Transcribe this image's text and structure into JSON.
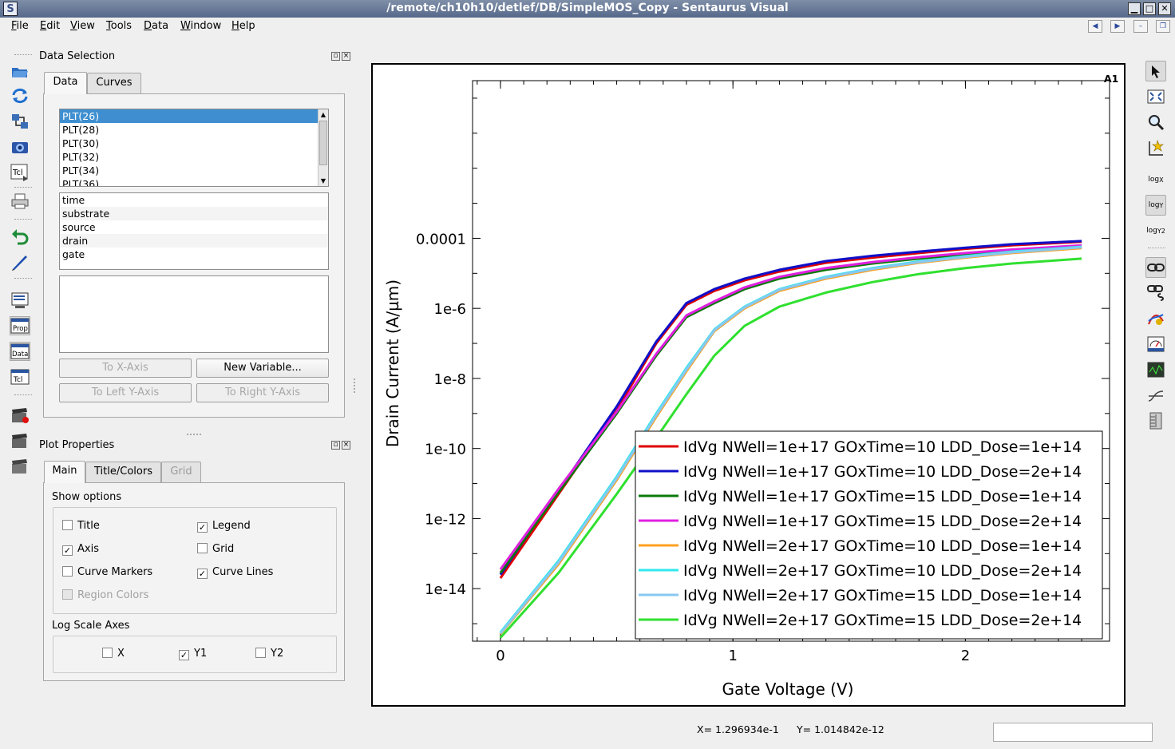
{
  "window": {
    "title": "/remote/ch10h10/detlef/DB/SimpleMOS_Copy - Sentaurus Visual",
    "icon_letter": "S"
  },
  "menubar": {
    "items": [
      "File",
      "Edit",
      "View",
      "Tools",
      "Data",
      "Window",
      "Help"
    ]
  },
  "left_toolbar": {
    "icons": [
      "open-folder-icon",
      "reload-icon",
      "connect-icon",
      "camera-icon",
      "tcl-run-icon",
      "print-icon",
      "undo-icon",
      "pen-icon",
      "command-panel-icon",
      "prop-panel-icon",
      "data-panel-icon",
      "tcl-panel-icon",
      "movie-record-icon",
      "movie-icon",
      "movie-export-icon"
    ],
    "prop_label": "Prop",
    "data_label": "Data",
    "tcl_label": "Tcl"
  },
  "data_selection": {
    "title": "Data Selection",
    "tabs": [
      "Data",
      "Curves"
    ],
    "datasets": [
      "PLT(26)",
      "PLT(28)",
      "PLT(30)",
      "PLT(32)",
      "PLT(34)",
      "PLT(36)"
    ],
    "selected_dataset": "PLT(26)",
    "variables": [
      "time",
      "substrate",
      "source",
      "drain",
      "gate"
    ],
    "buttons": {
      "to_x": "To X-Axis",
      "new_variable": "New Variable...",
      "to_left_y": "To Left Y-Axis",
      "to_right_y": "To Right Y-Axis"
    }
  },
  "plot_properties": {
    "title": "Plot Properties",
    "tabs": [
      "Main",
      "Title/Colors",
      "Grid"
    ],
    "show_options_label": "Show options",
    "options": {
      "title": {
        "label": "Title",
        "checked": false
      },
      "legend": {
        "label": "Legend",
        "checked": true
      },
      "axis": {
        "label": "Axis",
        "checked": true
      },
      "grid": {
        "label": "Grid",
        "checked": false
      },
      "curve_markers": {
        "label": "Curve Markers",
        "checked": false
      },
      "curve_lines": {
        "label": "Curve Lines",
        "checked": true
      },
      "region_colors": {
        "label": "Region Colors",
        "checked": false
      }
    },
    "log_scale_label": "Log Scale Axes",
    "log_axes": {
      "x": {
        "label": "X",
        "checked": false
      },
      "y1": {
        "label": "Y1",
        "checked": true
      },
      "y2": {
        "label": "Y2",
        "checked": false
      }
    }
  },
  "plot": {
    "id_label": "A1"
  },
  "chart_data": {
    "type": "line",
    "title": "",
    "xlabel": "Gate Voltage (V)",
    "ylabel": "Drain Current (A/µm)",
    "xlim": [
      -0.12,
      2.62
    ],
    "ylim_log10": [
      -15.5,
      0.5
    ],
    "y_scale": "log",
    "grid": false,
    "legend_position": "bottom-right",
    "x_ticks": [
      0,
      1,
      2
    ],
    "x_tick_labels": [
      "0",
      "1",
      "2"
    ],
    "y_ticks_log10": [
      -4,
      -6,
      -8,
      -10,
      -12,
      -14
    ],
    "y_tick_labels": [
      "0.0001",
      "1e-6",
      "1e-8",
      "1e-10",
      "1e-12",
      "1e-14"
    ],
    "x": [
      0,
      0.25,
      0.5,
      0.67,
      0.8,
      0.92,
      1.05,
      1.2,
      1.4,
      1.6,
      1.8,
      2.0,
      2.2,
      2.5
    ],
    "series": [
      {
        "name": "IdVg NWell=1e+17 GOxTime=10 LDD_Dose=1e+14",
        "color": "#e00000",
        "log10_values": [
          -13.7,
          -11.3,
          -8.9,
          -7.0,
          -5.9,
          -5.5,
          -5.2,
          -4.95,
          -4.7,
          -4.55,
          -4.42,
          -4.3,
          -4.2,
          -4.1
        ]
      },
      {
        "name": "IdVg NWell=1e+17 GOxTime=10 LDD_Dose=2e+14",
        "color": "#1010c8",
        "log10_values": [
          -13.6,
          -11.2,
          -8.8,
          -6.95,
          -5.85,
          -5.45,
          -5.15,
          -4.9,
          -4.65,
          -4.5,
          -4.38,
          -4.27,
          -4.17,
          -4.08
        ]
      },
      {
        "name": "IdVg NWell=1e+17 GOxTime=15 LDD_Dose=1e+14",
        "color": "#0a7a0a",
        "log10_values": [
          -13.55,
          -11.25,
          -9.0,
          -7.35,
          -6.25,
          -5.85,
          -5.45,
          -5.15,
          -4.9,
          -4.72,
          -4.58,
          -4.46,
          -4.36,
          -4.25
        ]
      },
      {
        "name": "IdVg NWell=1e+17 GOxTime=15 LDD_Dose=2e+14",
        "color": "#e020e0",
        "log10_values": [
          -13.45,
          -11.15,
          -8.95,
          -7.3,
          -6.2,
          -5.8,
          -5.4,
          -5.1,
          -4.85,
          -4.68,
          -4.54,
          -4.42,
          -4.32,
          -4.2
        ]
      },
      {
        "name": "IdVg NWell=2e+17 GOxTime=10 LDD_Dose=1e+14",
        "color": "#ffa020",
        "log10_values": [
          -15.3,
          -13.3,
          -10.9,
          -9.1,
          -7.8,
          -6.65,
          -6.0,
          -5.5,
          -5.15,
          -4.9,
          -4.7,
          -4.55,
          -4.42,
          -4.28
        ]
      },
      {
        "name": "IdVg NWell=2e+17 GOxTime=10 LDD_Dose=2e+14",
        "color": "#30e8f0",
        "log10_values": [
          -15.25,
          -13.2,
          -10.8,
          -9.0,
          -7.7,
          -6.6,
          -5.95,
          -5.45,
          -5.1,
          -4.85,
          -4.66,
          -4.51,
          -4.38,
          -4.24
        ]
      },
      {
        "name": "IdVg NWell=2e+17 GOxTime=15 LDD_Dose=1e+14",
        "color": "#88c8f0",
        "log10_values": [
          -15.28,
          -13.25,
          -10.85,
          -9.05,
          -7.75,
          -6.62,
          -5.97,
          -5.47,
          -5.12,
          -4.87,
          -4.68,
          -4.53,
          -4.4,
          -4.26
        ]
      },
      {
        "name": "IdVg NWell=2e+17 GOxTime=15 LDD_Dose=2e+14",
        "color": "#30e030",
        "log10_values": [
          -15.4,
          -13.55,
          -11.3,
          -9.7,
          -8.45,
          -7.35,
          -6.5,
          -5.95,
          -5.55,
          -5.25,
          -5.02,
          -4.85,
          -4.72,
          -4.58
        ]
      }
    ]
  },
  "statusbar": {
    "x_readout": "X= 1.296934e-1",
    "y_readout": "Y= 1.014842e-12"
  }
}
